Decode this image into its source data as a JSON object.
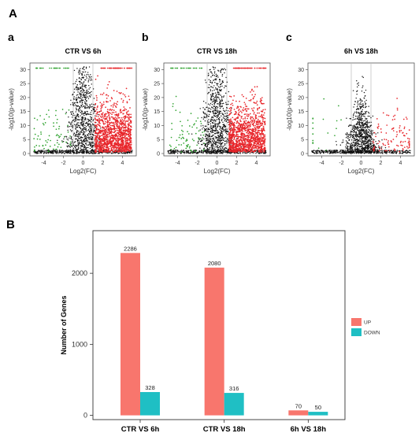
{
  "panels": {
    "A": "A",
    "B": "B"
  },
  "volcano_plots": [
    {
      "letter": "a",
      "title": "CTR VS 6h",
      "xlabel": "Log2(FC)",
      "ylabel": "-log10(p-value)",
      "xticks": [
        "-4",
        "-2",
        "0",
        "2",
        "4"
      ],
      "yticks": [
        "0",
        "5",
        "10",
        "15",
        "20",
        "25",
        "30"
      ],
      "thresholds": {
        "log2fc": [
          -1,
          1
        ]
      },
      "density": {
        "up": 1.0,
        "down": 0.45
      }
    },
    {
      "letter": "b",
      "title": "CTR VS 18h",
      "xlabel": "Log2(FC)",
      "ylabel": "-log10(p-value)",
      "xticks": [
        "-4",
        "-2",
        "0",
        "2",
        "4"
      ],
      "yticks": [
        "0",
        "5",
        "10",
        "15",
        "20",
        "25",
        "30"
      ],
      "thresholds": {
        "log2fc": [
          -1,
          1
        ]
      },
      "density": {
        "up": 0.95,
        "down": 0.45
      }
    },
    {
      "letter": "c",
      "title": "6h VS 18h",
      "xlabel": "Log2(FC)",
      "ylabel": "-log10(p-value)",
      "xticks": [
        "-4",
        "-2",
        "0",
        "2",
        "4"
      ],
      "yticks": [
        "0",
        "5",
        "10",
        "15",
        "20",
        "25",
        "30"
      ],
      "thresholds": {
        "log2fc": [
          -1,
          1
        ]
      },
      "density": {
        "up": 0.08,
        "down": 0.06
      }
    }
  ],
  "colors": {
    "up_point": "#e8262b",
    "down_point": "#2fa22f",
    "ns_point": "#111111",
    "up_bar": "#f8766d",
    "down_bar": "#1fbfc4"
  },
  "chart_data": {
    "type": "bar",
    "categories": [
      "CTR VS 6h",
      "CTR VS 18h",
      "6h VS 18h"
    ],
    "series": [
      {
        "name": "UP",
        "values": [
          2286,
          2080,
          70
        ]
      },
      {
        "name": "DOWN",
        "values": [
          328,
          316,
          50
        ]
      }
    ],
    "ylabel": "Number of Genes",
    "yticks": [
      0,
      1000,
      2000
    ],
    "ylim": [
      -60,
      2600
    ],
    "legend": "right"
  }
}
